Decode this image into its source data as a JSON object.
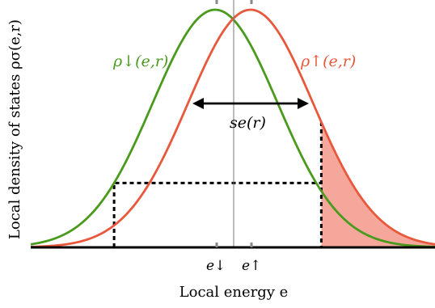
{
  "axes": {
    "xlabel": "Local energy e",
    "ylabel": "Local density of states ρσ(e,r)"
  },
  "curves": {
    "down": {
      "label": "ρ↓(e,r)",
      "color": "#4a9a1e",
      "center": -0.35,
      "sigma": 1.75
    },
    "up": {
      "label": "ρ↑(e,r)",
      "color": "#e8583c",
      "center": 0.35,
      "sigma": 1.75
    }
  },
  "ticks": {
    "e_down": "e↓",
    "e_up": "e↑"
  },
  "width_label": "se(r)",
  "shade_color": "#f4a79a",
  "x_range": [
    -4.0,
    4.0
  ],
  "threshold_high": 1.75,
  "threshold_low": -2.35
}
